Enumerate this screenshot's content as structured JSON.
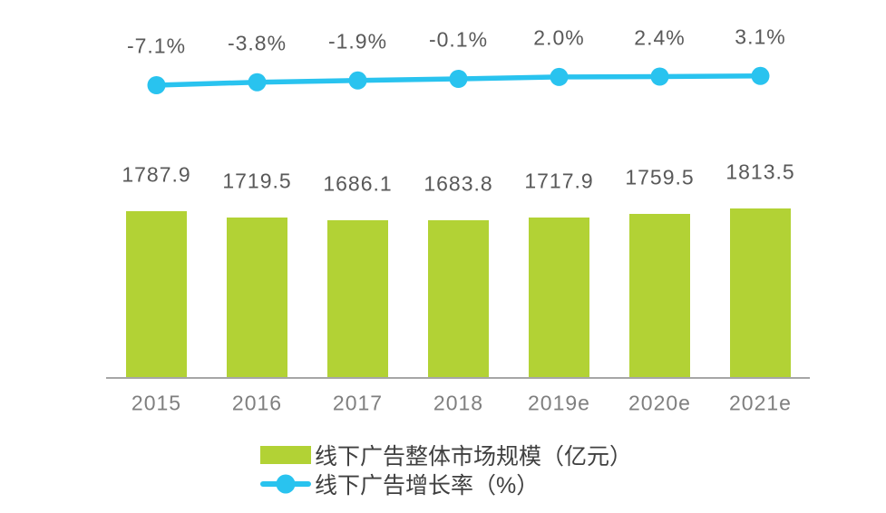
{
  "chart_data": {
    "type": "bar",
    "combo": "bar+line",
    "title": "",
    "xlabel": "",
    "ylabel": "",
    "grid": false,
    "legend_position": "bottom",
    "categories": [
      "2015",
      "2016",
      "2017",
      "2018",
      "2019e",
      "2020e",
      "2021e"
    ],
    "series": [
      {
        "name": "线下广告整体市场规模（亿元）",
        "type": "bar",
        "values": [
          1787.9,
          1719.5,
          1686.1,
          1683.8,
          1717.9,
          1759.5,
          1813.5
        ],
        "labels": [
          "1787.9",
          "1719.5",
          "1686.1",
          "1683.8",
          "1717.9",
          "1759.5",
          "1813.5"
        ],
        "color": "#B2D235"
      },
      {
        "name": "线下广告增长率（%）",
        "type": "line",
        "values": [
          -7.1,
          -3.8,
          -1.9,
          -0.1,
          2.0,
          2.4,
          3.1
        ],
        "labels": [
          "-7.1%",
          "-3.8%",
          "-1.9%",
          "-0.1%",
          "2.0%",
          "2.4%",
          "3.1%"
        ],
        "color": "#29C3EF"
      }
    ],
    "colors": {
      "bar_fill": "#B2D235",
      "line_stroke": "#29C3EF",
      "value_label": "#595959",
      "tick_label": "#7F7F7F",
      "legend_text": "#404040",
      "axis_line": "#A6A6A6",
      "background": "#FFFFFF"
    }
  },
  "legend": {
    "items": [
      {
        "label": "线下广告整体市场规模（亿元）",
        "swatch": "bar-swatch"
      },
      {
        "label": "线下广告增长率（%）",
        "swatch": "line-swatch"
      }
    ]
  }
}
